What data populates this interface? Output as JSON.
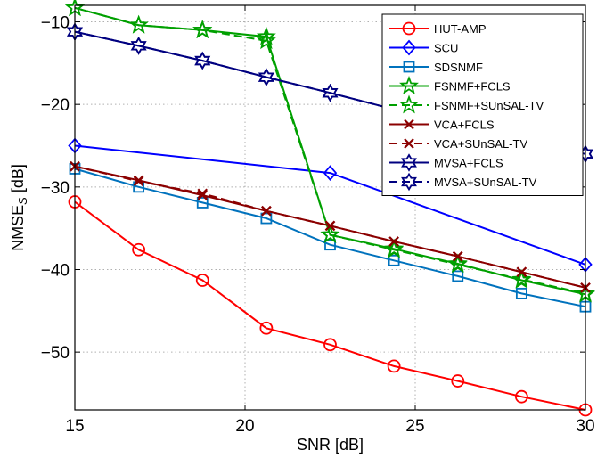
{
  "chart_data": {
    "type": "line",
    "xlabel": "SNR  [dB]",
    "ylabel_main": "NMSE",
    "ylabel_sub": "S",
    "ylabel_suffix": " [dB]",
    "xlim": [
      15,
      30
    ],
    "ylim": [
      -57,
      -8
    ],
    "xticks": [
      15,
      20,
      25,
      30
    ],
    "yticks": [
      -50,
      -40,
      -30,
      -20,
      -10
    ],
    "x": [
      15,
      16.875,
      18.75,
      20.625,
      22.5,
      24.375,
      26.25,
      28.125,
      30
    ],
    "grid": true,
    "legend_position": "top-right",
    "series": [
      {
        "name": "HUT-AMP",
        "color": "#ff0000",
        "dash": "solid",
        "marker": "circle",
        "values": [
          -31.8,
          -37.6,
          -41.3,
          -47.1,
          -49.1,
          -51.7,
          -53.5,
          -55.4,
          -57.0
        ]
      },
      {
        "name": "SCU",
        "color": "#0000ff",
        "dash": "solid",
        "marker": "diamond",
        "values": [
          -25.0,
          null,
          null,
          null,
          -28.3,
          null,
          null,
          null,
          -39.4
        ]
      },
      {
        "name": "SDSNMF",
        "color": "#0072bd",
        "dash": "solid",
        "marker": "square",
        "values": [
          -27.8,
          -30.0,
          -31.9,
          -33.8,
          -37.0,
          -38.9,
          -40.8,
          -42.9,
          -44.5
        ]
      },
      {
        "name": "FSNMF+FCLS",
        "color": "#00a000",
        "dash": "solid",
        "marker": "star",
        "values": [
          -8.3,
          -10.4,
          -11.0,
          -11.8,
          -35.8,
          -37.5,
          -39.3,
          -41.3,
          -43.0
        ]
      },
      {
        "name": "FSNMF+SUnSAL-TV",
        "color": "#00a000",
        "dash": "dashed",
        "marker": "star",
        "values": [
          -8.3,
          -10.4,
          -11.0,
          -12.3,
          -35.8,
          -37.6,
          -39.4,
          -41.2,
          -42.9
        ]
      },
      {
        "name": "VCA+FCLS",
        "color": "#8b0000",
        "dash": "solid",
        "marker": "x",
        "values": [
          -27.5,
          -29.2,
          -31.0,
          -32.9,
          -34.7,
          -36.6,
          -38.4,
          -40.3,
          -42.2
        ]
      },
      {
        "name": "VCA+SUnSAL-TV",
        "color": "#8b0000",
        "dash": "dashed",
        "marker": "x",
        "values": [
          -27.5,
          -29.3,
          -30.8,
          -32.9,
          -34.7,
          -36.6,
          -38.4,
          -40.3,
          -42.2
        ]
      },
      {
        "name": "MVSA+FCLS",
        "color": "#000080",
        "dash": "solid",
        "marker": "hexagram",
        "values": [
          -11.2,
          -12.9,
          -14.7,
          -16.7,
          -18.6,
          -20.6,
          -22.4,
          -24.3,
          -26.0
        ]
      },
      {
        "name": "MVSA+SUnSAL-TV",
        "color": "#000080",
        "dash": "dashed",
        "marker": "hexagram",
        "values": [
          -11.2,
          -12.9,
          -14.7,
          -16.7,
          -18.6,
          -20.6,
          -22.4,
          -24.3,
          -26.0
        ]
      }
    ]
  }
}
